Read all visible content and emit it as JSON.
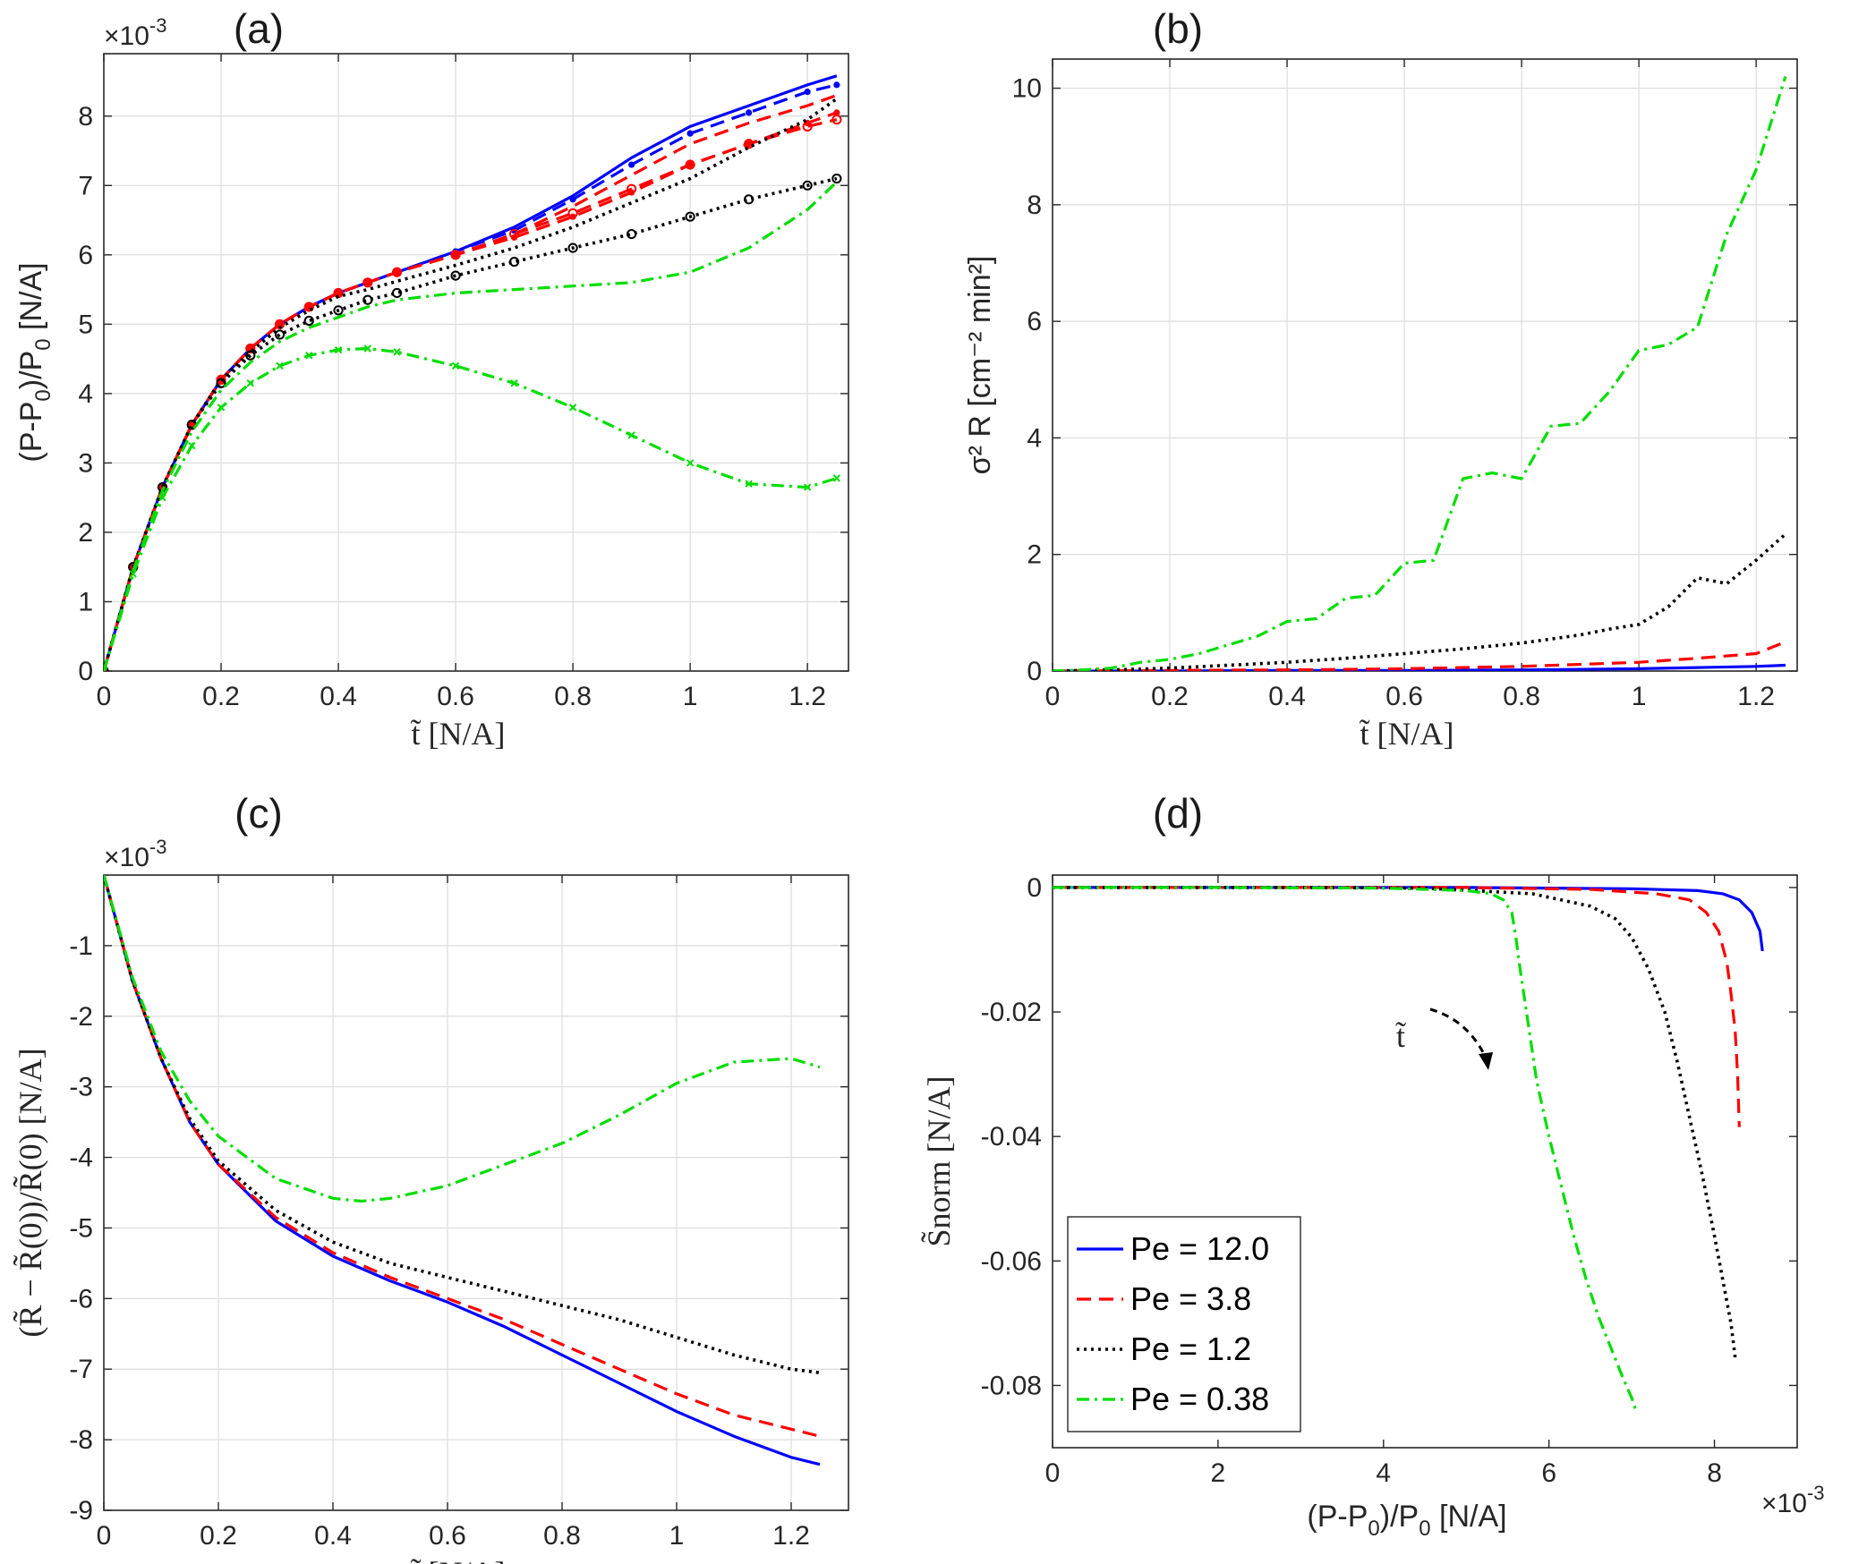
{
  "colors": {
    "Pe = 12.0": "#0000ff",
    "Pe = 3.8": "#ff0000",
    "Pe = 1.2": "#000000",
    "Pe = 0.38": "#00dd00"
  },
  "chart_data": [
    {
      "id": "a",
      "type": "line",
      "title": "(a)",
      "xlabel": "t̃ [N/A]",
      "ylabel": "(P-P0)/P0 [N/A]",
      "ylabel_parts": [
        "(P-P",
        "0",
        ")/P",
        "0",
        " [N/A]"
      ],
      "exponent_label": "×10",
      "exponent_power": "-3",
      "xlim": [
        0,
        1.27
      ],
      "ylim": [
        0,
        8.9
      ],
      "xticks": [
        0,
        0.2,
        0.4,
        0.6,
        0.8,
        1,
        1.2
      ],
      "xtick_labels": [
        "0",
        "0.2",
        "0.4",
        "0.6",
        "0.8",
        "1",
        "1.2"
      ],
      "yticks": [
        0,
        1,
        2,
        3,
        4,
        5,
        6,
        7,
        8
      ],
      "ytick_labels": [
        "0",
        "1",
        "2",
        "3",
        "4",
        "5",
        "6",
        "7",
        "8"
      ],
      "grid": true,
      "series": [
        {
          "name": "Pe = 12.0",
          "style": "solid",
          "marker": "none",
          "x": [
            0,
            0.05,
            0.1,
            0.15,
            0.2,
            0.25,
            0.3,
            0.35,
            0.4,
            0.45,
            0.5,
            0.6,
            0.7,
            0.8,
            0.9,
            1.0,
            1.1,
            1.2,
            1.25
          ],
          "y": [
            0,
            1.5,
            2.65,
            3.55,
            4.2,
            4.65,
            5.0,
            5.25,
            5.45,
            5.6,
            5.75,
            6.05,
            6.4,
            6.85,
            7.4,
            7.85,
            8.15,
            8.45,
            8.58
          ]
        },
        {
          "name": "Pe = 12.0",
          "style": "dashed",
          "marker": "dot",
          "x": [
            0,
            0.05,
            0.1,
            0.15,
            0.2,
            0.25,
            0.3,
            0.35,
            0.4,
            0.45,
            0.5,
            0.6,
            0.7,
            0.8,
            0.9,
            1.0,
            1.1,
            1.2,
            1.25
          ],
          "y": [
            0,
            1.5,
            2.65,
            3.55,
            4.2,
            4.65,
            5.0,
            5.25,
            5.45,
            5.6,
            5.75,
            6.05,
            6.35,
            6.8,
            7.3,
            7.75,
            8.05,
            8.35,
            8.45
          ]
        },
        {
          "name": "Pe = 3.8",
          "style": "dashed",
          "marker": "none",
          "x": [
            0,
            0.05,
            0.1,
            0.15,
            0.2,
            0.25,
            0.3,
            0.35,
            0.4,
            0.45,
            0.5,
            0.6,
            0.7,
            0.8,
            0.9,
            1.0,
            1.1,
            1.2,
            1.25
          ],
          "y": [
            0,
            1.5,
            2.65,
            3.55,
            4.2,
            4.65,
            5.0,
            5.25,
            5.45,
            5.6,
            5.75,
            6.0,
            6.3,
            6.7,
            7.15,
            7.6,
            7.9,
            8.15,
            8.3
          ]
        },
        {
          "name": "Pe = 3.8",
          "style": "dashed",
          "marker": "circle",
          "x": [
            0,
            0.05,
            0.1,
            0.15,
            0.2,
            0.25,
            0.3,
            0.35,
            0.4,
            0.45,
            0.5,
            0.6,
            0.7,
            0.8,
            0.9,
            1.0,
            1.1,
            1.2,
            1.25
          ],
          "y": [
            0,
            1.5,
            2.65,
            3.55,
            4.2,
            4.65,
            5.0,
            5.25,
            5.45,
            5.6,
            5.75,
            6.0,
            6.3,
            6.6,
            6.95,
            7.3,
            7.6,
            7.85,
            7.95
          ]
        },
        {
          "name": "Pe = 3.8",
          "style": "dashed",
          "marker": "dot",
          "x": [
            0,
            0.05,
            0.1,
            0.15,
            0.2,
            0.25,
            0.3,
            0.35,
            0.4,
            0.45,
            0.5,
            0.6,
            0.7,
            0.8,
            0.9,
            1.0,
            1.1,
            1.2,
            1.25
          ],
          "y": [
            0,
            1.5,
            2.65,
            3.55,
            4.2,
            4.65,
            5.0,
            5.25,
            5.45,
            5.6,
            5.75,
            6.0,
            6.25,
            6.55,
            6.9,
            7.3,
            7.6,
            7.9,
            8.05
          ]
        },
        {
          "name": "Pe = 1.2",
          "style": "dotted",
          "marker": "none",
          "x": [
            0,
            0.05,
            0.1,
            0.15,
            0.2,
            0.25,
            0.3,
            0.35,
            0.4,
            0.45,
            0.5,
            0.6,
            0.7,
            0.8,
            0.9,
            1.0,
            1.1,
            1.2,
            1.25
          ],
          "y": [
            0,
            1.5,
            2.65,
            3.55,
            4.2,
            4.6,
            4.95,
            5.2,
            5.4,
            5.5,
            5.62,
            5.85,
            6.1,
            6.4,
            6.75,
            7.1,
            7.55,
            7.95,
            8.25
          ]
        },
        {
          "name": "Pe = 1.2",
          "style": "dotted",
          "marker": "circle",
          "x": [
            0,
            0.05,
            0.1,
            0.15,
            0.2,
            0.25,
            0.3,
            0.35,
            0.4,
            0.45,
            0.5,
            0.6,
            0.7,
            0.8,
            0.9,
            1.0,
            1.1,
            1.2,
            1.25
          ],
          "y": [
            0,
            1.5,
            2.65,
            3.55,
            4.15,
            4.55,
            4.85,
            5.05,
            5.2,
            5.35,
            5.45,
            5.7,
            5.9,
            6.1,
            6.3,
            6.55,
            6.8,
            7.0,
            7.1
          ]
        },
        {
          "name": "Pe = 0.38",
          "style": "dashdot",
          "marker": "none",
          "x": [
            0,
            0.05,
            0.1,
            0.15,
            0.2,
            0.25,
            0.3,
            0.35,
            0.4,
            0.45,
            0.5,
            0.6,
            0.7,
            0.8,
            0.9,
            1.0,
            1.1,
            1.2,
            1.25
          ],
          "y": [
            0,
            1.45,
            2.6,
            3.45,
            4.05,
            4.45,
            4.75,
            4.95,
            5.1,
            5.25,
            5.35,
            5.45,
            5.5,
            5.55,
            5.6,
            5.75,
            6.1,
            6.65,
            7.05
          ]
        },
        {
          "name": "Pe = 0.38",
          "style": "dashdot",
          "marker": "x",
          "x": [
            0,
            0.05,
            0.1,
            0.15,
            0.2,
            0.25,
            0.3,
            0.35,
            0.4,
            0.45,
            0.5,
            0.6,
            0.7,
            0.8,
            0.9,
            1.0,
            1.1,
            1.2,
            1.25
          ],
          "y": [
            0,
            1.4,
            2.5,
            3.25,
            3.8,
            4.15,
            4.4,
            4.55,
            4.63,
            4.65,
            4.6,
            4.4,
            4.15,
            3.8,
            3.4,
            3.0,
            2.7,
            2.65,
            2.78
          ]
        }
      ]
    },
    {
      "id": "b",
      "type": "line",
      "title": "(b)",
      "xlabel": "t̃ [N/A]",
      "ylabel": "σ² R [cm⁻² min²]",
      "xlim": [
        0,
        1.27
      ],
      "ylim": [
        0,
        10.5
      ],
      "xticks": [
        0,
        0.2,
        0.4,
        0.6,
        0.8,
        1,
        1.2
      ],
      "xtick_labels": [
        "0",
        "0.2",
        "0.4",
        "0.6",
        "0.8",
        "1",
        "1.2"
      ],
      "yticks": [
        0,
        2,
        4,
        6,
        8,
        10
      ],
      "ytick_labels": [
        "0",
        "2",
        "4",
        "6",
        "8",
        "10"
      ],
      "grid": true,
      "series": [
        {
          "name": "Pe = 12.0",
          "style": "solid",
          "x": [
            0,
            0.2,
            0.4,
            0.6,
            0.8,
            1.0,
            1.1,
            1.2,
            1.25
          ],
          "y": [
            0,
            0,
            0.01,
            0.01,
            0.02,
            0.04,
            0.06,
            0.08,
            0.1
          ]
        },
        {
          "name": "Pe = 3.8",
          "style": "dashed",
          "x": [
            0,
            0.2,
            0.4,
            0.6,
            0.8,
            1.0,
            1.1,
            1.2,
            1.25
          ],
          "y": [
            0,
            0.01,
            0.02,
            0.04,
            0.08,
            0.15,
            0.22,
            0.3,
            0.5
          ]
        },
        {
          "name": "Pe = 1.2",
          "style": "dotted",
          "x": [
            0,
            0.1,
            0.2,
            0.3,
            0.4,
            0.5,
            0.6,
            0.7,
            0.8,
            0.85,
            0.9,
            0.95,
            1.0,
            1.05,
            1.1,
            1.15,
            1.2,
            1.25
          ],
          "y": [
            0,
            0.02,
            0.05,
            0.1,
            0.15,
            0.22,
            0.3,
            0.38,
            0.48,
            0.55,
            0.62,
            0.72,
            0.8,
            1.1,
            1.6,
            1.5,
            1.9,
            2.35
          ]
        },
        {
          "name": "Pe = 0.38",
          "style": "dashdot",
          "x": [
            0,
            0.05,
            0.1,
            0.15,
            0.2,
            0.25,
            0.3,
            0.35,
            0.4,
            0.45,
            0.5,
            0.55,
            0.6,
            0.65,
            0.7,
            0.75,
            0.8,
            0.85,
            0.9,
            0.95,
            1.0,
            1.05,
            1.1,
            1.15,
            1.2,
            1.25
          ],
          "y": [
            0,
            0.02,
            0.05,
            0.15,
            0.2,
            0.3,
            0.45,
            0.6,
            0.85,
            0.9,
            1.25,
            1.3,
            1.85,
            1.9,
            3.3,
            3.4,
            3.3,
            4.2,
            4.25,
            4.8,
            5.5,
            5.6,
            5.9,
            7.5,
            8.6,
            10.2
          ]
        }
      ]
    },
    {
      "id": "c",
      "type": "line",
      "title": "(c)",
      "xlabel": "t̃ [N/A]",
      "ylabel": "(R̃ − R̃(0))/R̃(0) [N/A]",
      "exponent_label": "×10",
      "exponent_power": "-3",
      "xlim": [
        0,
        1.3
      ],
      "ylim": [
        -9,
        0
      ],
      "xticks": [
        0,
        0.2,
        0.4,
        0.6,
        0.8,
        1,
        1.2
      ],
      "xtick_labels": [
        "0",
        "0.2",
        "0.4",
        "0.6",
        "0.8",
        "1",
        "1.2"
      ],
      "yticks": [
        -9,
        -8,
        -7,
        -6,
        -5,
        -4,
        -3,
        -2,
        -1
      ],
      "ytick_labels": [
        "-9",
        "-8",
        "-7",
        "-6",
        "-5",
        "-4",
        "-3",
        "-2",
        "-1"
      ],
      "grid": true,
      "series": [
        {
          "name": "Pe = 12.0",
          "style": "solid",
          "x": [
            0,
            0.05,
            0.1,
            0.15,
            0.2,
            0.3,
            0.4,
            0.5,
            0.6,
            0.7,
            0.8,
            0.9,
            1.0,
            1.1,
            1.2,
            1.25
          ],
          "y": [
            0,
            -1.5,
            -2.6,
            -3.5,
            -4.1,
            -4.9,
            -5.4,
            -5.75,
            -6.05,
            -6.4,
            -6.8,
            -7.2,
            -7.6,
            -7.95,
            -8.25,
            -8.35
          ]
        },
        {
          "name": "Pe = 3.8",
          "style": "dashed",
          "x": [
            0,
            0.05,
            0.1,
            0.15,
            0.2,
            0.3,
            0.4,
            0.5,
            0.6,
            0.7,
            0.8,
            0.9,
            1.0,
            1.1,
            1.2,
            1.25
          ],
          "y": [
            0,
            -1.5,
            -2.6,
            -3.5,
            -4.1,
            -4.85,
            -5.35,
            -5.7,
            -6.0,
            -6.3,
            -6.65,
            -7.0,
            -7.35,
            -7.65,
            -7.85,
            -7.95
          ]
        },
        {
          "name": "Pe = 1.2",
          "style": "dotted",
          "x": [
            0,
            0.05,
            0.1,
            0.15,
            0.2,
            0.3,
            0.4,
            0.5,
            0.6,
            0.7,
            0.8,
            0.9,
            1.0,
            1.1,
            1.2,
            1.25
          ],
          "y": [
            0,
            -1.5,
            -2.6,
            -3.45,
            -4.05,
            -4.75,
            -5.2,
            -5.5,
            -5.7,
            -5.9,
            -6.1,
            -6.3,
            -6.55,
            -6.8,
            -7.0,
            -7.05
          ]
        },
        {
          "name": "Pe = 0.38",
          "style": "dashdot",
          "x": [
            0,
            0.05,
            0.1,
            0.15,
            0.2,
            0.3,
            0.4,
            0.45,
            0.5,
            0.6,
            0.7,
            0.8,
            0.9,
            1.0,
            1.1,
            1.2,
            1.25
          ],
          "y": [
            0,
            -1.45,
            -2.5,
            -3.2,
            -3.7,
            -4.3,
            -4.58,
            -4.62,
            -4.58,
            -4.4,
            -4.1,
            -3.8,
            -3.4,
            -2.95,
            -2.65,
            -2.6,
            -2.72
          ]
        }
      ]
    },
    {
      "id": "d",
      "type": "line",
      "title": "(d)",
      "xlabel": "(P-P0)/P0 [N/A]",
      "xlabel_parts": [
        "(P-P",
        "0",
        ")/P",
        "0",
        " [N/A]"
      ],
      "ylabel": "S̃norm [N/A]",
      "exponent_label": "×10",
      "exponent_power": "-3",
      "xlim": [
        0,
        9
      ],
      "ylim": [
        -0.09,
        0.002
      ],
      "xticks": [
        0,
        2,
        4,
        6,
        8
      ],
      "xtick_labels": [
        "0",
        "2",
        "4",
        "6",
        "8"
      ],
      "yticks": [
        0,
        -0.02,
        -0.04,
        -0.06,
        -0.08
      ],
      "ytick_labels": [
        "0",
        "-0.02",
        "-0.04",
        "-0.06",
        "-0.08"
      ],
      "grid": false,
      "annotation": "t̃",
      "legend": {
        "placement": "bottom-left",
        "entries": [
          "Pe = 12.0",
          "Pe = 3.8",
          "Pe = 1.2",
          "Pe = 0.38"
        ]
      },
      "series": [
        {
          "name": "Pe = 12.0",
          "style": "solid",
          "x": [
            0,
            3,
            5,
            7,
            7.8,
            8.1,
            8.3,
            8.45,
            8.55,
            8.58
          ],
          "y": [
            0,
            0,
            0,
            -0.0002,
            -0.0005,
            -0.001,
            -0.002,
            -0.004,
            -0.007,
            -0.0102
          ]
        },
        {
          "name": "Pe = 3.8",
          "style": "dashed",
          "x": [
            0,
            3,
            5,
            6.5,
            7.3,
            7.7,
            7.9,
            8.05,
            8.15,
            8.2,
            8.25,
            8.28,
            8.3
          ],
          "y": [
            0,
            0,
            0,
            -0.0003,
            -0.001,
            -0.002,
            -0.004,
            -0.007,
            -0.012,
            -0.017,
            -0.023,
            -0.03,
            -0.0385
          ]
        },
        {
          "name": "Pe = 1.2",
          "style": "dotted",
          "x": [
            0,
            3,
            4.5,
            5.8,
            6.5,
            6.8,
            7.0,
            7.2,
            7.4,
            7.55,
            7.7,
            7.85,
            8.0,
            8.1,
            8.2,
            8.25
          ],
          "y": [
            0,
            0,
            -0.0001,
            -0.001,
            -0.003,
            -0.005,
            -0.008,
            -0.013,
            -0.02,
            -0.028,
            -0.037,
            -0.046,
            -0.056,
            -0.063,
            -0.07,
            -0.0755
          ]
        },
        {
          "name": "Pe = 0.38",
          "style": "dashdot",
          "x": [
            0,
            2,
            4,
            5,
            5.3,
            5.45,
            5.55,
            5.6,
            5.65,
            5.75,
            5.85,
            6.0,
            6.15,
            6.3,
            6.45,
            6.6,
            6.75,
            6.9,
            7.0,
            7.05
          ],
          "y": [
            0,
            0,
            -0.0001,
            -0.0005,
            -0.001,
            -0.002,
            -0.004,
            -0.008,
            -0.013,
            -0.022,
            -0.031,
            -0.04,
            -0.048,
            -0.056,
            -0.063,
            -0.069,
            -0.074,
            -0.079,
            -0.082,
            -0.084
          ]
        }
      ]
    }
  ]
}
